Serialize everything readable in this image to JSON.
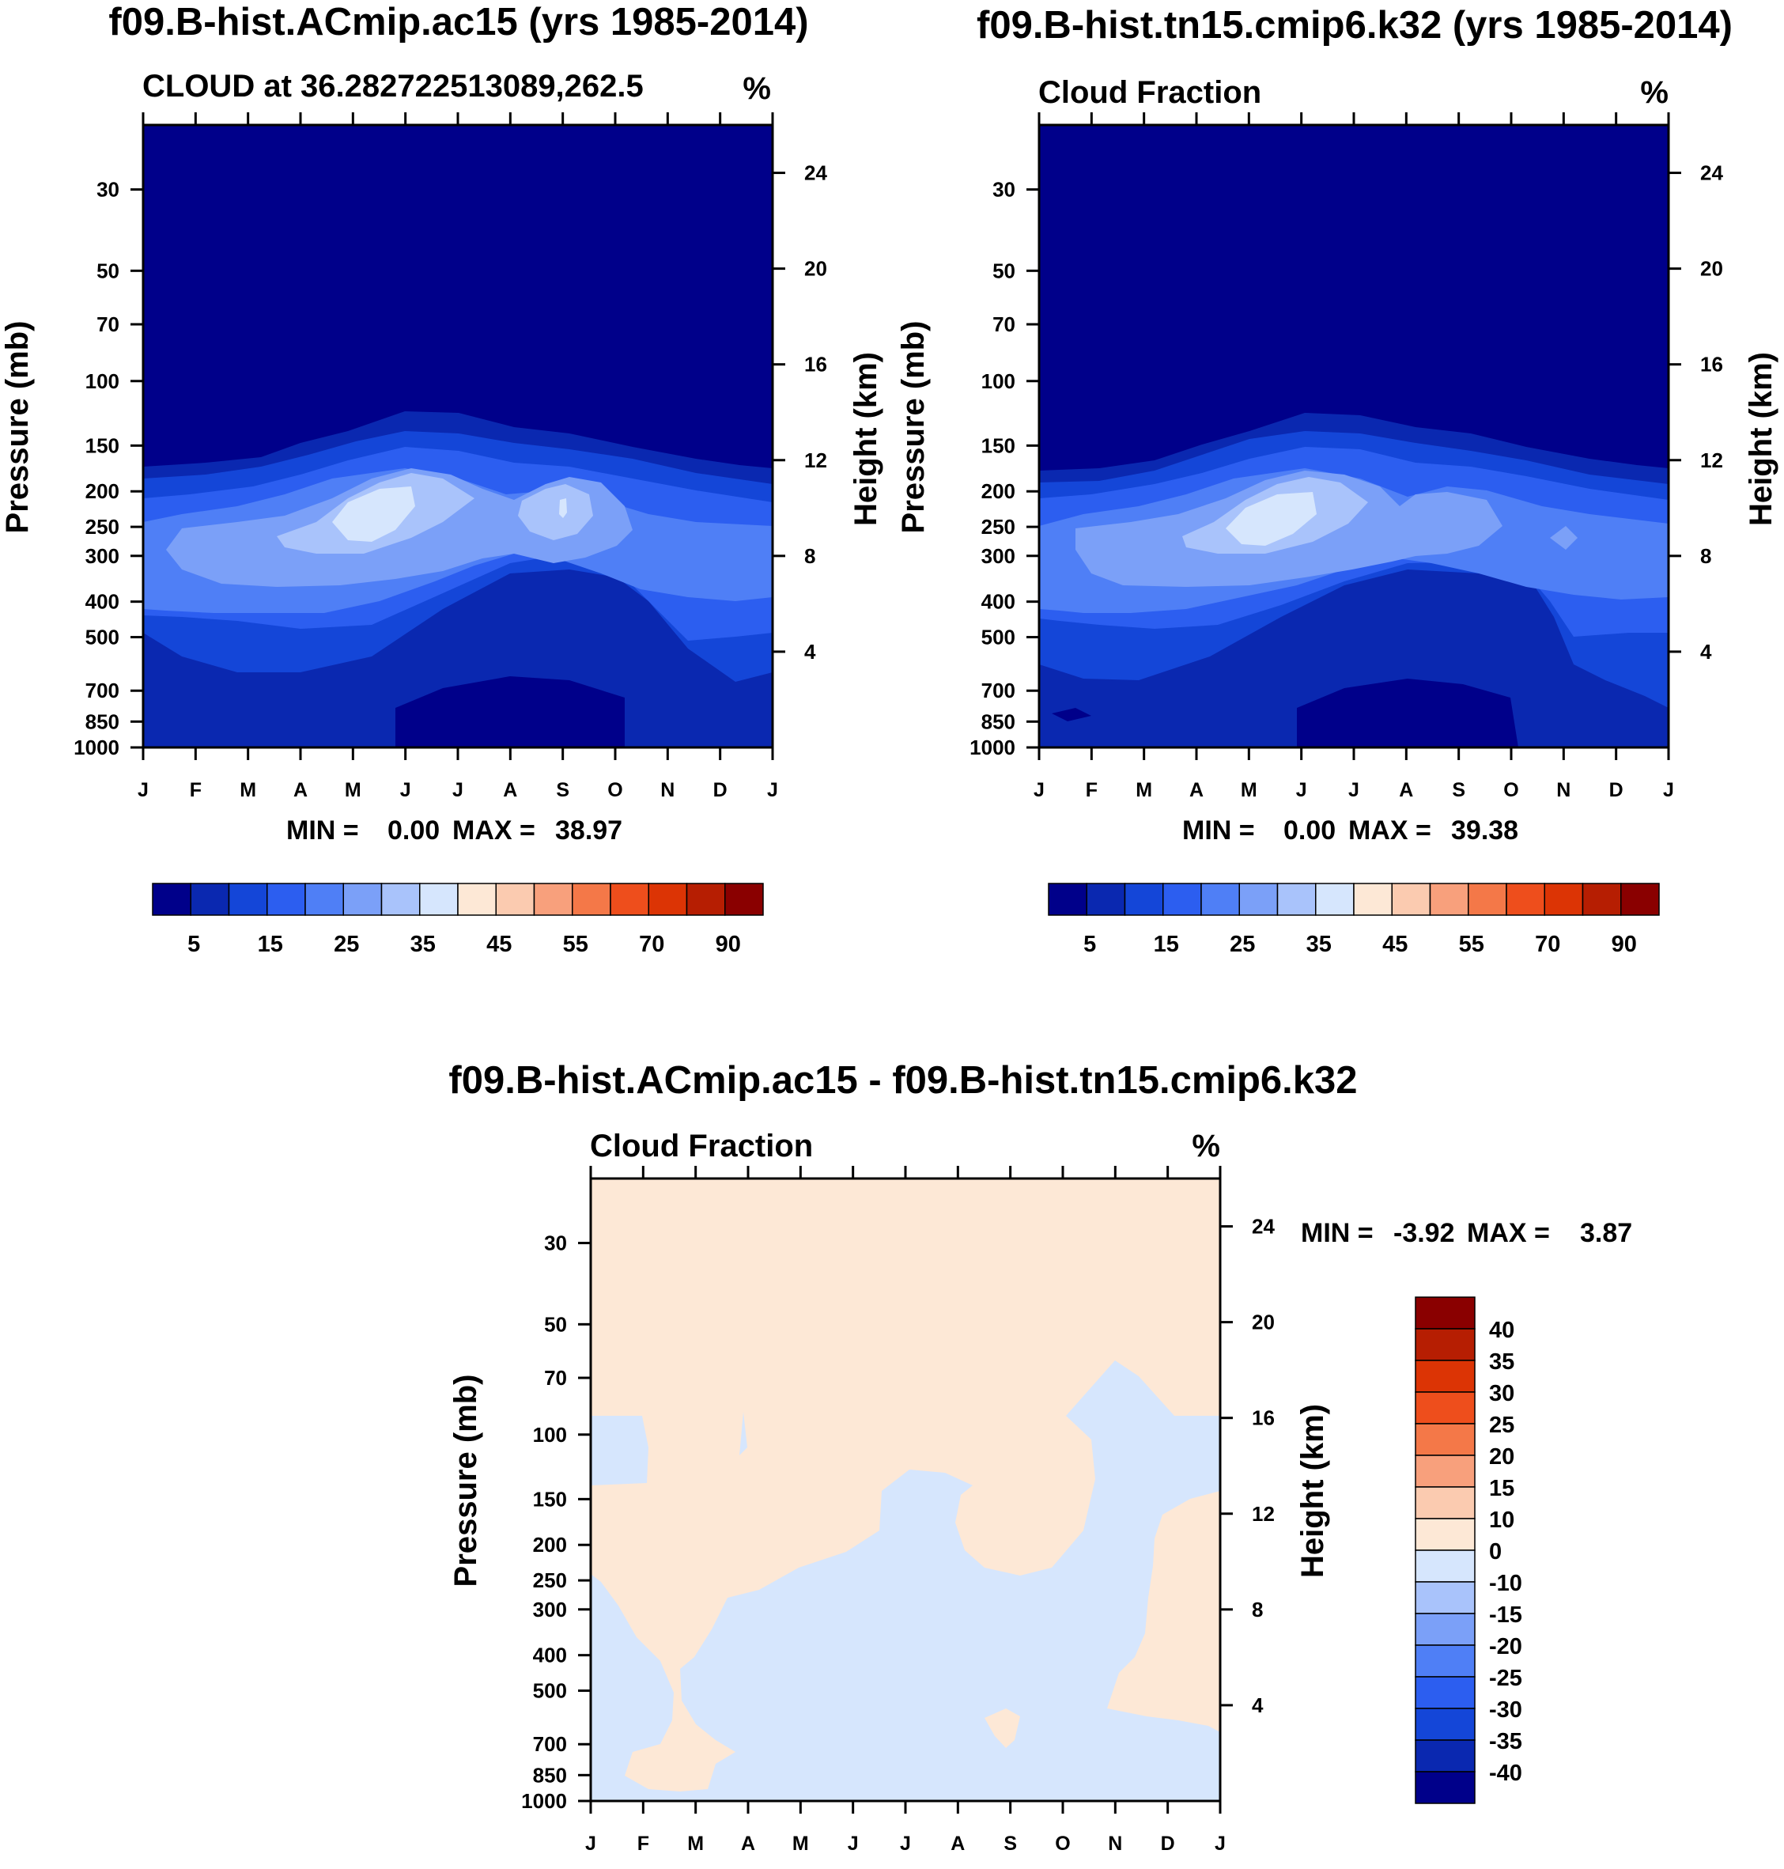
{
  "chart_data": [
    {
      "type": "heatmap",
      "name": "left-panel",
      "title": "f09.B-hist.ACmip.ac15 (yrs 1985-2014)",
      "left_string": "CLOUD at 36.282722513089,262.5",
      "right_string": "%",
      "ylabel": "Pressure (mb)",
      "ylabel_right": "Height (km)",
      "pressure_ticks": [
        "30",
        "50",
        "70",
        "100",
        "150",
        "200",
        "250",
        "300",
        "400",
        "500",
        "700",
        "850",
        "1000"
      ],
      "height_ticks": [
        "24",
        "20",
        "16",
        "12",
        "8",
        "4"
      ],
      "months": [
        "J",
        "F",
        "M",
        "A",
        "M",
        "J",
        "J",
        "A",
        "S",
        "O",
        "N",
        "D",
        "J"
      ],
      "min_label": "MIN =",
      "min_value": "0.00",
      "max_label": "MAX =",
      "max_value": "38.97",
      "colorbar_labels": [
        "5",
        "15",
        "25",
        "35",
        "45",
        "55",
        "70",
        "90"
      ]
    },
    {
      "type": "heatmap",
      "name": "right-panel",
      "title": "f09.B-hist.tn15.cmip6.k32 (yrs 1985-2014)",
      "left_string": "Cloud Fraction",
      "right_string": "%",
      "ylabel": "Pressure (mb)",
      "ylabel_right": "Height (km)",
      "pressure_ticks": [
        "30",
        "50",
        "70",
        "100",
        "150",
        "200",
        "250",
        "300",
        "400",
        "500",
        "700",
        "850",
        "1000"
      ],
      "height_ticks": [
        "24",
        "20",
        "16",
        "12",
        "8",
        "4"
      ],
      "months": [
        "J",
        "F",
        "M",
        "A",
        "M",
        "J",
        "J",
        "A",
        "S",
        "O",
        "N",
        "D",
        "J"
      ],
      "min_label": "MIN =",
      "min_value": "0.00",
      "max_label": "MAX =",
      "max_value": "39.38",
      "colorbar_labels": [
        "5",
        "15",
        "25",
        "35",
        "45",
        "55",
        "70",
        "90"
      ]
    },
    {
      "type": "heatmap",
      "name": "difference-panel",
      "title": "f09.B-hist.ACmip.ac15 - f09.B-hist.tn15.cmip6.k32",
      "left_string": "Cloud Fraction",
      "right_string": "%",
      "ylabel": "Pressure (mb)",
      "ylabel_right": "Height (km)",
      "pressure_ticks": [
        "30",
        "50",
        "70",
        "100",
        "150",
        "200",
        "250",
        "300",
        "400",
        "500",
        "700",
        "850",
        "1000"
      ],
      "height_ticks": [
        "24",
        "20",
        "16",
        "12",
        "8",
        "4"
      ],
      "months": [
        "J",
        "F",
        "M",
        "A",
        "M",
        "J",
        "J",
        "A",
        "S",
        "O",
        "N",
        "D",
        "J"
      ],
      "min_label": "MIN =",
      "min_value": "-3.92",
      "max_label": "MAX =",
      "max_value": "3.87",
      "colorbar_labels": [
        "40",
        "35",
        "30",
        "25",
        "20",
        "15",
        "10",
        "0",
        "-10",
        "-15",
        "-20",
        "-25",
        "-30",
        "-35",
        "-40"
      ]
    }
  ],
  "colors": {
    "abs_scale": [
      "#00008a",
      "#0a28b0",
      "#1446d8",
      "#2c5ef0",
      "#4f7ff6",
      "#7ba0f8",
      "#a9c3fb",
      "#d6e6fd",
      "#fde8d6",
      "#fbcbb0",
      "#f8a07c",
      "#f47848",
      "#ee4e1c",
      "#dc3405",
      "#b61e02",
      "#8a0000"
    ],
    "diff_scale": [
      "#8a0000",
      "#b61e02",
      "#dc3405",
      "#ee4e1c",
      "#f47848",
      "#f8a07c",
      "#fbcbb0",
      "#fde8d6",
      "#d6e6fd",
      "#a9c3fb",
      "#7ba0f8",
      "#4f7ff6",
      "#2c5ef0",
      "#1446d8",
      "#0a28b0",
      "#00008a"
    ]
  }
}
